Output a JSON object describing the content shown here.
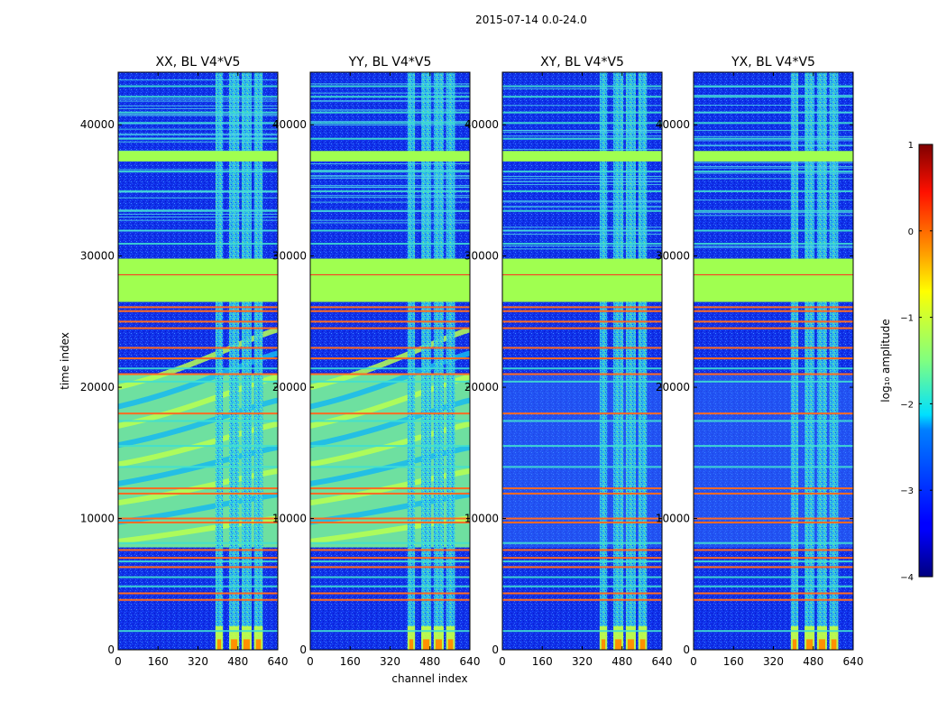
{
  "figure": {
    "suptitle": "2015-07-14 0.0-24.0"
  },
  "chart_data": {
    "type": "heatmap",
    "xlabel": "channel index",
    "ylabel": "time index",
    "xlim": [
      0,
      640
    ],
    "ylim": [
      0,
      44000
    ],
    "xticks": [
      0,
      160,
      320,
      480,
      640
    ],
    "yticks": [
      0,
      10000,
      20000,
      30000,
      40000
    ],
    "panels": [
      {
        "title": "XX, BL V4*V5",
        "pol": "XX",
        "show_ylabel": true
      },
      {
        "title": "YY, BL V4*V5",
        "pol": "YY",
        "show_xlabel": true
      },
      {
        "title": "XY, BL V4*V5",
        "pol": "XY"
      },
      {
        "title": "YX, BL V4*V5",
        "pol": "YX"
      }
    ],
    "colorbar": {
      "label": "log₁₀ amplitude",
      "vmin": -4,
      "vmax": 1,
      "ticks": [
        1,
        0,
        -1,
        -2,
        -3,
        -4
      ],
      "tick_labels": [
        "1",
        "0",
        "−1",
        "−2",
        "−3",
        "−4"
      ],
      "colormap": "jet"
    },
    "features": {
      "flagged_time_bands": [
        [
          26500,
          29800
        ],
        [
          37200,
          38000
        ]
      ],
      "rfi_channel_bands": [
        [
          390,
          420
        ],
        [
          445,
          485
        ],
        [
          495,
          535
        ],
        [
          545,
          580
        ]
      ],
      "orange_time_lines": [
        3800,
        4300,
        6300,
        7000,
        7600,
        9700,
        10000,
        11900,
        12300,
        18000,
        21000,
        22200,
        23000,
        24500,
        25000,
        25800,
        26100
      ],
      "cyan_time_lines": [
        1500,
        4900,
        5600,
        6800,
        8200,
        14000,
        15600,
        17500,
        20500,
        21500,
        31000,
        32000,
        33500,
        35000,
        36500,
        39000,
        40200,
        41000,
        42200,
        43000
      ],
      "fringe_time_range": [
        7800,
        21000
      ]
    }
  }
}
